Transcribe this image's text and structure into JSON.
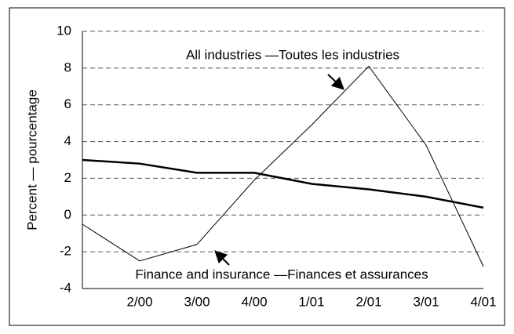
{
  "chart_data": {
    "type": "line",
    "y_label": "Percent — pourcentage",
    "categories": [
      null,
      "2/00",
      "3/00",
      "4/00",
      "1/01",
      "2/01",
      "3/01",
      "4/01"
    ],
    "series": [
      {
        "name": "All industries —Toutes les industries",
        "color": "#000000",
        "width": 1,
        "values": [
          -0.5,
          -2.5,
          -1.6,
          1.9,
          4.9,
          8.1,
          3.8,
          -2.8
        ]
      },
      {
        "name": "Finance and insurance —Finances et assurances",
        "color": "#000000",
        "width": 2.5,
        "values": [
          3.0,
          2.8,
          2.3,
          2.3,
          1.7,
          1.4,
          1.0,
          0.4
        ]
      }
    ],
    "ylim": [
      -4,
      10
    ],
    "yticks": [
      -4,
      -2,
      0,
      2,
      4,
      6,
      8,
      10
    ],
    "grid": true
  }
}
